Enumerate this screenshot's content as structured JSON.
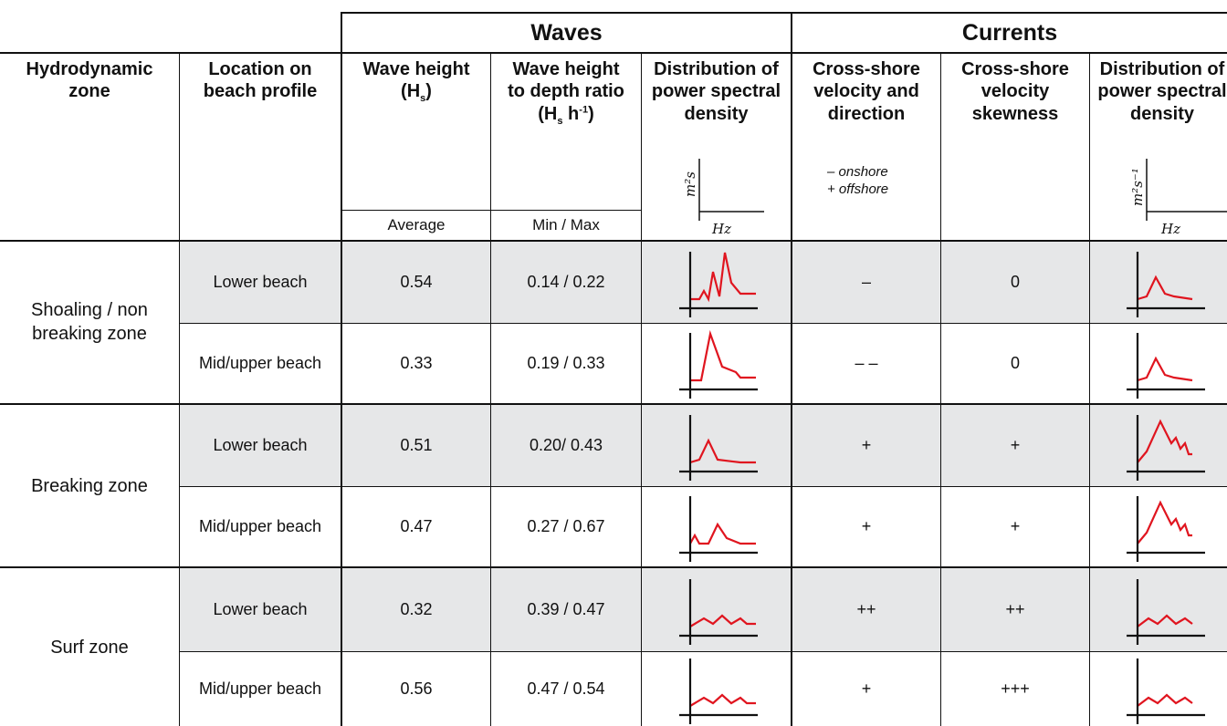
{
  "group_headers": {
    "waves": "Waves",
    "currents": "Currents"
  },
  "columns": {
    "zone": [
      "Hydrodynamic",
      "zone"
    ],
    "location": [
      "Location on",
      "beach profile"
    ],
    "wave_height": {
      "line1": "Wave height",
      "line2_main": "(H",
      "line2_sub": "s",
      "line2_end": ")"
    },
    "wave_depth_ratio": {
      "line1": "Wave height",
      "line2": "to depth ratio",
      "line3_a": "(H",
      "line3_sub": "s",
      "line3_b": " h",
      "line3_sup": "-1",
      "line3_end": ")"
    },
    "wave_psd": [
      "Distribution of",
      "power spectral",
      "density"
    ],
    "cross_shore_velocity": [
      "Cross-shore",
      "velocity and",
      "direction"
    ],
    "velocity_skewness": [
      "Cross-shore",
      "velocity",
      "skewness"
    ],
    "current_psd": [
      "Distribution of",
      "power spectral",
      "density"
    ]
  },
  "subheaders": {
    "wave_height": "Average",
    "wave_depth_ratio": "Min / Max"
  },
  "legend": {
    "onshore": "– onshore",
    "offshore": "+ offshore"
  },
  "axis_labels": {
    "wave_psd_y": "m²s",
    "wave_psd_x": "Hz",
    "current_psd_y": "m²s⁻¹",
    "current_psd_x": "Hz"
  },
  "zones": [
    "Shoaling / non breaking zone",
    "Breaking zone",
    "Surf zone"
  ],
  "zone_lines": [
    [
      "Shoaling / non",
      "breaking zone"
    ],
    [
      "Breaking zone"
    ],
    [
      "Surf zone"
    ]
  ],
  "rows": [
    {
      "zone": "Shoaling / non breaking zone",
      "location": "Lower beach",
      "wave_height": "0.54",
      "ratio": "0.14 / 0.22",
      "velocity": "–",
      "skewness": "0"
    },
    {
      "zone": "Shoaling / non breaking zone",
      "location": "Mid/upper beach",
      "wave_height": "0.33",
      "ratio": "0.19 / 0.33",
      "velocity": "– –",
      "skewness": "0"
    },
    {
      "zone": "Breaking zone",
      "location": "Lower beach",
      "wave_height": "0.51",
      "ratio": "0.20/ 0.43",
      "velocity": "+",
      "skewness": "+"
    },
    {
      "zone": "Breaking zone",
      "location": "Mid/upper beach",
      "wave_height": "0.47",
      "ratio": "0.27 / 0.67",
      "velocity": "+",
      "skewness": "+"
    },
    {
      "zone": "Surf zone",
      "location": "Lower beach",
      "wave_height": "0.32",
      "ratio": "0.39 / 0.47",
      "velocity": "++",
      "skewness": "++"
    },
    {
      "zone": "Surf zone",
      "location": "Mid/upper beach",
      "wave_height": "0.56",
      "ratio": "0.47 / 0.54",
      "velocity": "+",
      "skewness": "+++"
    }
  ],
  "colors": {
    "curve": "#e0151f",
    "shade": "#e6e7e8",
    "line": "#111111"
  },
  "chart_data": {
    "type": "table",
    "categories": [
      "Lower beach",
      "Mid/upper beach",
      "Lower beach",
      "Mid/upper beach",
      "Lower beach",
      "Mid/upper beach"
    ],
    "series": [
      {
        "name": "Average",
        "values": [
          0.54,
          0.33,
          0.51,
          0.47,
          0.32,
          0.56
        ]
      },
      {
        "name": "Min / Max",
        "values": [
          [
            0.14,
            0.22
          ],
          [
            0.19,
            0.33
          ],
          [
            0.2,
            0.43
          ],
          [
            0.27,
            0.67
          ],
          [
            0.39,
            0.47
          ],
          [
            0.47,
            0.54
          ]
        ]
      }
    ],
    "wave_psd_sketches": [
      [
        [
          0,
          0.1
        ],
        [
          0.1,
          0.1
        ],
        [
          0.15,
          0.25
        ],
        [
          0.2,
          0.1
        ],
        [
          0.25,
          0.6
        ],
        [
          0.32,
          0.15
        ],
        [
          0.38,
          0.95
        ],
        [
          0.45,
          0.4
        ],
        [
          0.55,
          0.2
        ],
        [
          0.72,
          0.2
        ]
      ],
      [
        [
          0,
          0.1
        ],
        [
          0.12,
          0.1
        ],
        [
          0.22,
          0.95
        ],
        [
          0.35,
          0.35
        ],
        [
          0.5,
          0.25
        ],
        [
          0.55,
          0.15
        ],
        [
          0.72,
          0.15
        ]
      ],
      [
        [
          0,
          0.1
        ],
        [
          0.1,
          0.15
        ],
        [
          0.2,
          0.5
        ],
        [
          0.3,
          0.15
        ],
        [
          0.45,
          0.12
        ],
        [
          0.55,
          0.1
        ],
        [
          0.72,
          0.1
        ]
      ],
      [
        [
          0,
          0.1
        ],
        [
          0.05,
          0.25
        ],
        [
          0.1,
          0.1
        ],
        [
          0.2,
          0.1
        ],
        [
          0.3,
          0.45
        ],
        [
          0.4,
          0.2
        ],
        [
          0.55,
          0.1
        ],
        [
          0.72,
          0.1
        ]
      ],
      [
        [
          0,
          0.1
        ],
        [
          0.15,
          0.25
        ],
        [
          0.25,
          0.15
        ],
        [
          0.35,
          0.3
        ],
        [
          0.45,
          0.15
        ],
        [
          0.55,
          0.25
        ],
        [
          0.62,
          0.15
        ],
        [
          0.72,
          0.15
        ]
      ],
      [
        [
          0,
          0.1
        ],
        [
          0.15,
          0.25
        ],
        [
          0.25,
          0.15
        ],
        [
          0.35,
          0.3
        ],
        [
          0.45,
          0.15
        ],
        [
          0.55,
          0.25
        ],
        [
          0.62,
          0.15
        ],
        [
          0.72,
          0.15
        ]
      ]
    ],
    "current_psd_sketches": [
      [
        [
          0,
          0.1
        ],
        [
          0.1,
          0.15
        ],
        [
          0.2,
          0.5
        ],
        [
          0.3,
          0.2
        ],
        [
          0.4,
          0.15
        ],
        [
          0.6,
          0.1
        ]
      ],
      [
        [
          0,
          0.1
        ],
        [
          0.1,
          0.15
        ],
        [
          0.2,
          0.5
        ],
        [
          0.3,
          0.2
        ],
        [
          0.4,
          0.15
        ],
        [
          0.6,
          0.1
        ]
      ],
      [
        [
          0,
          0.1
        ],
        [
          0.1,
          0.3
        ],
        [
          0.25,
          0.85
        ],
        [
          0.37,
          0.45
        ],
        [
          0.42,
          0.55
        ],
        [
          0.47,
          0.35
        ],
        [
          0.52,
          0.45
        ],
        [
          0.56,
          0.25
        ],
        [
          0.6,
          0.25
        ]
      ],
      [
        [
          0,
          0.1
        ],
        [
          0.1,
          0.3
        ],
        [
          0.25,
          0.85
        ],
        [
          0.37,
          0.45
        ],
        [
          0.42,
          0.55
        ],
        [
          0.47,
          0.35
        ],
        [
          0.52,
          0.45
        ],
        [
          0.56,
          0.25
        ],
        [
          0.6,
          0.25
        ]
      ],
      [
        [
          0,
          0.1
        ],
        [
          0.12,
          0.25
        ],
        [
          0.22,
          0.15
        ],
        [
          0.32,
          0.3
        ],
        [
          0.42,
          0.15
        ],
        [
          0.52,
          0.25
        ],
        [
          0.6,
          0.15
        ]
      ],
      [
        [
          0,
          0.1
        ],
        [
          0.12,
          0.25
        ],
        [
          0.22,
          0.15
        ],
        [
          0.32,
          0.3
        ],
        [
          0.42,
          0.15
        ],
        [
          0.52,
          0.25
        ],
        [
          0.6,
          0.15
        ]
      ]
    ]
  }
}
